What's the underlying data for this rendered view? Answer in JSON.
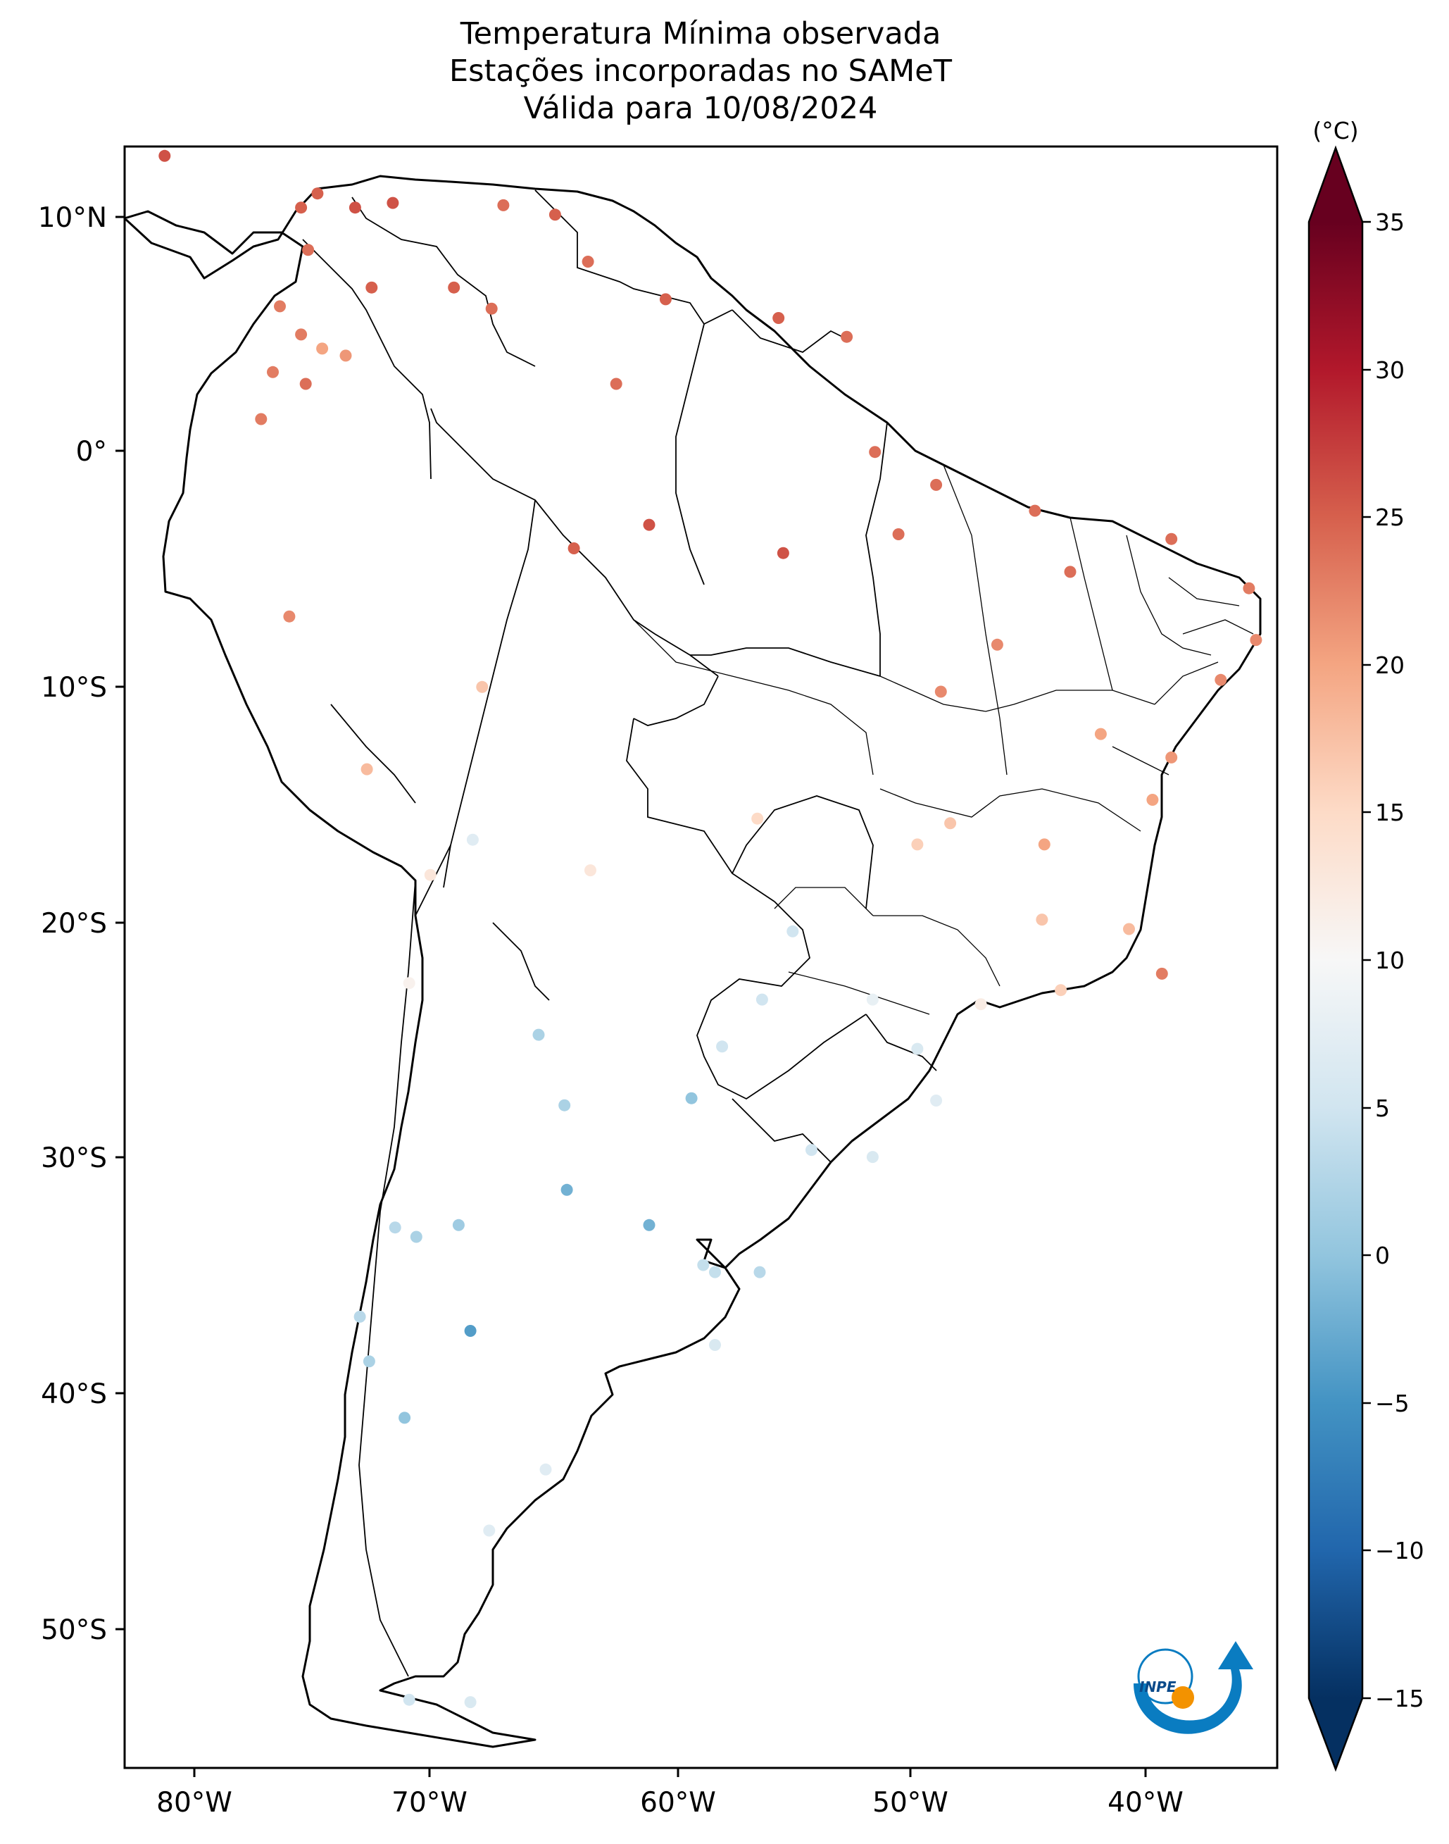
{
  "title": {
    "line1": "Temperatura Mínima observada",
    "line2": "Estações incorporadas no SAMeT",
    "line3": "Válida para 10/08/2024"
  },
  "axes": {
    "lon_ticks": [
      "80°W",
      "70°W",
      "60°W",
      "50°W",
      "40°W"
    ],
    "lat_ticks": [
      "10°N",
      "0°",
      "10°S",
      "20°S",
      "30°S",
      "40°S",
      "50°S"
    ]
  },
  "colorbar": {
    "unit_label": "(°C)",
    "ticks": [
      "35",
      "30",
      "25",
      "20",
      "15",
      "10",
      "5",
      "0",
      "−5",
      "−10",
      "−15"
    ],
    "colormap": "RdBu_r",
    "range": [
      -15,
      35
    ],
    "extend": "both"
  },
  "logo": {
    "text": "INPE"
  },
  "chart_data": {
    "type": "scatter",
    "variable": "minimum temperature (°C)",
    "x_range_lon": [
      -83,
      -34
    ],
    "y_range_lat": [
      -56,
      13
    ],
    "stations": [
      {
        "lon": -81.3,
        "lat": 12.6,
        "t": 26
      },
      {
        "lon": -75.5,
        "lat": 10.4,
        "t": 25
      },
      {
        "lon": -74.8,
        "lat": 11.0,
        "t": 25
      },
      {
        "lon": -73.2,
        "lat": 10.4,
        "t": 26
      },
      {
        "lon": -71.6,
        "lat": 10.6,
        "t": 26
      },
      {
        "lon": -72.5,
        "lat": 7.0,
        "t": 25
      },
      {
        "lon": -75.2,
        "lat": 8.6,
        "t": 24
      },
      {
        "lon": -76.4,
        "lat": 6.2,
        "t": 23
      },
      {
        "lon": -74.6,
        "lat": 4.4,
        "t": 20
      },
      {
        "lon": -75.5,
        "lat": 5.0,
        "t": 23
      },
      {
        "lon": -73.6,
        "lat": 4.1,
        "t": 21
      },
      {
        "lon": -76.7,
        "lat": 3.4,
        "t": 23
      },
      {
        "lon": -75.3,
        "lat": 2.9,
        "t": 24
      },
      {
        "lon": -77.2,
        "lat": 1.4,
        "t": 23
      },
      {
        "lon": -69.0,
        "lat": 7.0,
        "t": 25
      },
      {
        "lon": -66.9,
        "lat": 10.5,
        "t": 24
      },
      {
        "lon": -64.7,
        "lat": 10.1,
        "t": 25
      },
      {
        "lon": -63.3,
        "lat": 8.1,
        "t": 24
      },
      {
        "lon": -67.4,
        "lat": 6.1,
        "t": 24
      },
      {
        "lon": -62.1,
        "lat": 2.9,
        "t": 24
      },
      {
        "lon": -60.0,
        "lat": 6.5,
        "t": 25
      },
      {
        "lon": -55.2,
        "lat": 5.7,
        "t": 25
      },
      {
        "lon": -52.3,
        "lat": 4.9,
        "t": 24
      },
      {
        "lon": -51.1,
        "lat": 0.0,
        "t": 24
      },
      {
        "lon": -60.7,
        "lat": -3.1,
        "t": 26
      },
      {
        "lon": -63.9,
        "lat": -4.1,
        "t": 25
      },
      {
        "lon": -55.0,
        "lat": -4.3,
        "t": 26
      },
      {
        "lon": -50.1,
        "lat": -3.5,
        "t": 24
      },
      {
        "lon": -48.5,
        "lat": -1.4,
        "t": 24
      },
      {
        "lon": -44.3,
        "lat": -2.5,
        "t": 24
      },
      {
        "lon": -38.5,
        "lat": -3.7,
        "t": 24
      },
      {
        "lon": -35.2,
        "lat": -5.8,
        "t": 23
      },
      {
        "lon": -34.9,
        "lat": -8.0,
        "t": 22
      },
      {
        "lon": -36.4,
        "lat": -9.7,
        "t": 22
      },
      {
        "lon": -38.5,
        "lat": -13.0,
        "t": 21
      },
      {
        "lon": -39.3,
        "lat": -14.8,
        "t": 20
      },
      {
        "lon": -40.3,
        "lat": -20.3,
        "t": 18
      },
      {
        "lon": -43.2,
        "lat": -22.9,
        "t": 16
      },
      {
        "lon": -46.6,
        "lat": -23.5,
        "t": 12
      },
      {
        "lon": -38.9,
        "lat": -22.2,
        "t": 23
      },
      {
        "lon": -42.8,
        "lat": -5.1,
        "t": 24
      },
      {
        "lon": -45.9,
        "lat": -8.2,
        "t": 22
      },
      {
        "lon": -48.3,
        "lat": -10.2,
        "t": 22
      },
      {
        "lon": -47.9,
        "lat": -15.8,
        "t": 17
      },
      {
        "lon": -49.3,
        "lat": -16.7,
        "t": 16
      },
      {
        "lon": -44.0,
        "lat": -19.9,
        "t": 17
      },
      {
        "lon": -43.9,
        "lat": -16.7,
        "t": 20
      },
      {
        "lon": -41.5,
        "lat": -12.0,
        "t": 20
      },
      {
        "lon": -56.1,
        "lat": -15.6,
        "t": 15
      },
      {
        "lon": -54.6,
        "lat": -20.4,
        "t": 5
      },
      {
        "lon": -55.9,
        "lat": -23.3,
        "t": 5
      },
      {
        "lon": -51.2,
        "lat": -23.3,
        "t": 8
      },
      {
        "lon": -49.3,
        "lat": -25.4,
        "t": 6
      },
      {
        "lon": -48.5,
        "lat": -27.6,
        "t": 7
      },
      {
        "lon": -51.2,
        "lat": -30.0,
        "t": 6
      },
      {
        "lon": -53.8,
        "lat": -29.7,
        "t": 5
      },
      {
        "lon": -56.0,
        "lat": -34.9,
        "t": 3
      },
      {
        "lon": -57.9,
        "lat": -34.9,
        "t": 4
      },
      {
        "lon": -58.4,
        "lat": -34.6,
        "t": 4
      },
      {
        "lon": -64.2,
        "lat": -31.4,
        "t": -2
      },
      {
        "lon": -60.7,
        "lat": -32.9,
        "t": -2
      },
      {
        "lon": -68.8,
        "lat": -32.9,
        "t": 1
      },
      {
        "lon": -70.6,
        "lat": -33.4,
        "t": 2
      },
      {
        "lon": -71.5,
        "lat": -33.0,
        "t": 3
      },
      {
        "lon": -68.3,
        "lat": -37.4,
        "t": -4
      },
      {
        "lon": -71.1,
        "lat": -41.1,
        "t": 0
      },
      {
        "lon": -73.0,
        "lat": -36.8,
        "t": 3
      },
      {
        "lon": -72.6,
        "lat": -38.7,
        "t": 2
      },
      {
        "lon": -65.4,
        "lat": -24.8,
        "t": 2
      },
      {
        "lon": -64.3,
        "lat": -27.8,
        "t": 2
      },
      {
        "lon": -58.9,
        "lat": -27.5,
        "t": 0
      },
      {
        "lon": -57.6,
        "lat": -25.3,
        "t": 5
      },
      {
        "lon": -63.2,
        "lat": -17.8,
        "t": 13
      },
      {
        "lon": -68.2,
        "lat": -16.5,
        "t": 7
      },
      {
        "lon": -70.0,
        "lat": -18.0,
        "t": 13
      },
      {
        "lon": -67.8,
        "lat": -10.0,
        "t": 17
      },
      {
        "lon": -72.7,
        "lat": -13.5,
        "t": 18
      },
      {
        "lon": -76.0,
        "lat": -7.0,
        "t": 22
      },
      {
        "lon": -70.9,
        "lat": -22.6,
        "t": 11
      },
      {
        "lon": -68.3,
        "lat": -53.2,
        "t": 6
      },
      {
        "lon": -70.9,
        "lat": -53.1,
        "t": 5
      },
      {
        "lon": -57.9,
        "lat": -38.0,
        "t": 6
      },
      {
        "lon": -65.1,
        "lat": -43.3,
        "t": 7
      },
      {
        "lon": -67.5,
        "lat": -45.9,
        "t": 7
      }
    ]
  }
}
